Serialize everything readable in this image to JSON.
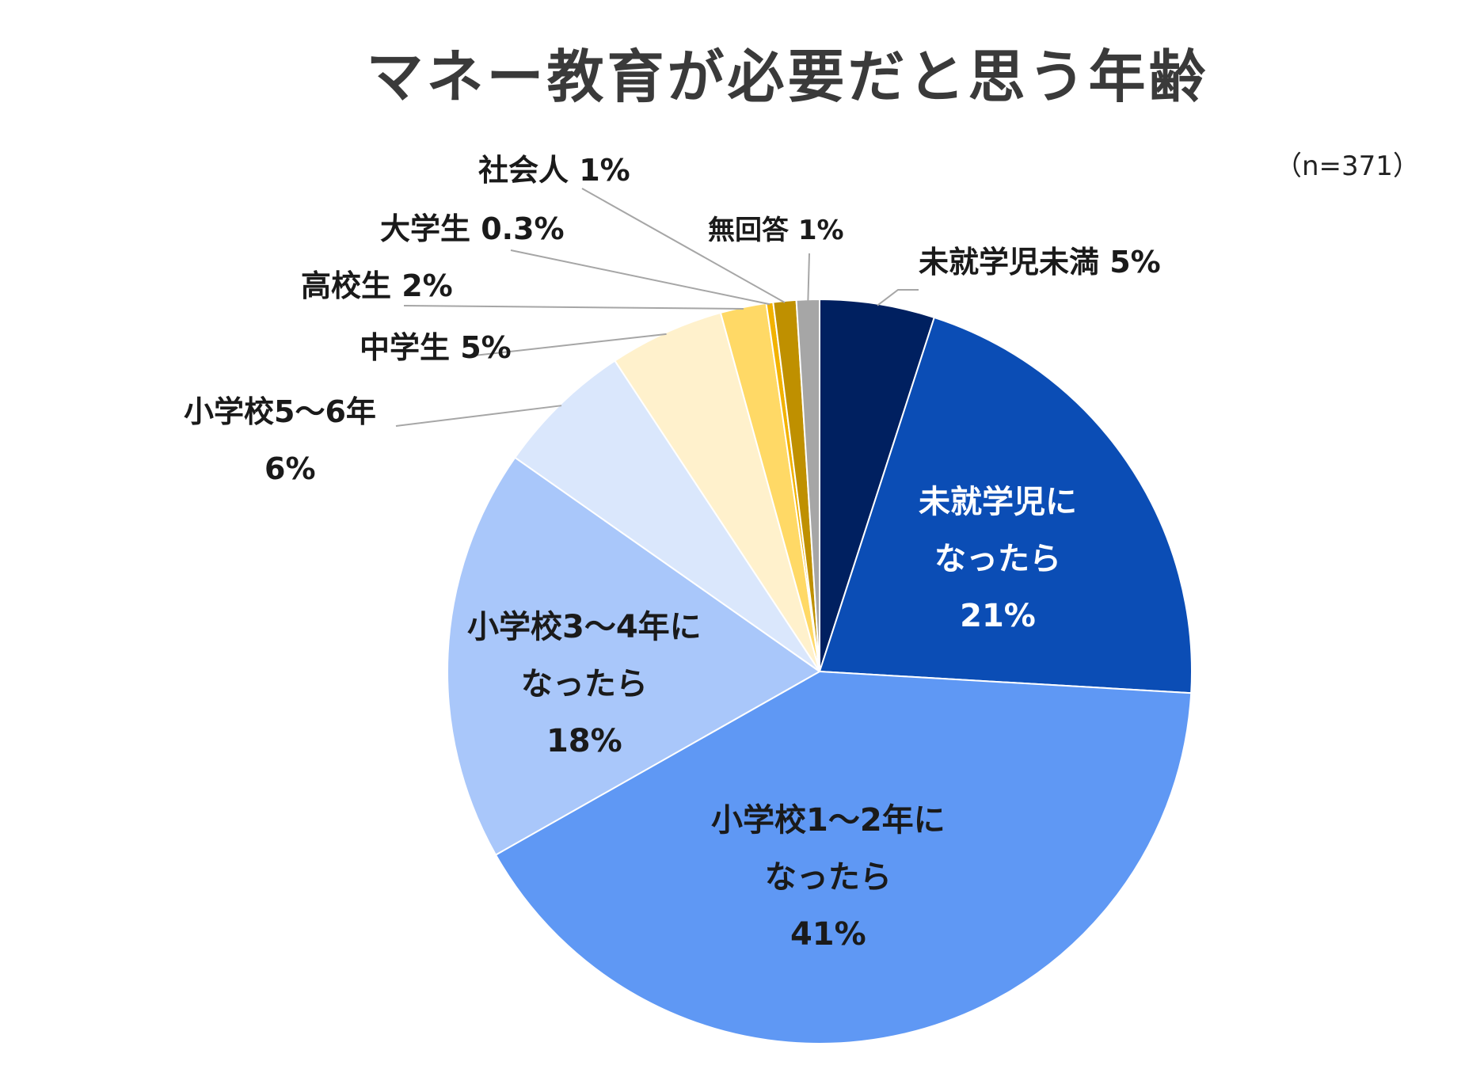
{
  "chart_data": {
    "type": "pie",
    "title": "マネー教育が必要だと思う年齢",
    "sample_note": "（n=371）",
    "start_angle": "12 o'clock, clockwise",
    "slices": [
      {
        "label": "未就学児未満",
        "value": 5,
        "value_label": "5%",
        "color": "#002060"
      },
      {
        "label": "未就学児になったら",
        "value": 21,
        "value_label": "21%",
        "color": "#0B4DB5"
      },
      {
        "label": "小学校1～2年になったら",
        "value": 41,
        "value_label": "41%",
        "color": "#5F98F4"
      },
      {
        "label": "小学校3～4年になったら",
        "value": 18,
        "value_label": "18%",
        "color": "#A9C7FA"
      },
      {
        "label": "小学校5～6年",
        "value": 6,
        "value_label": "6%",
        "color": "#DAE7FC"
      },
      {
        "label": "中学生",
        "value": 5,
        "value_label": "5%",
        "color": "#FFF1CC"
      },
      {
        "label": "高校生",
        "value": 2,
        "value_label": "2%",
        "color": "#FFD966"
      },
      {
        "label": "大学生",
        "value": 0.3,
        "value_label": "0.3%",
        "color": "#F2B200"
      },
      {
        "label": "社会人",
        "value": 1,
        "value_label": "1%",
        "color": "#BF9000"
      },
      {
        "label": "無回答",
        "value": 1,
        "value_label": "1%",
        "color": "#A6A6A6"
      }
    ]
  },
  "labels": {
    "s0": "未就学児未満 5%",
    "s1_line1": "未就学児に",
    "s1_line2": "なったら",
    "s1_line3": "21%",
    "s2_line1": "小学校1～2年に",
    "s2_line2": "なったら",
    "s2_line3": "41%",
    "s3_line1": "小学校3～4年に",
    "s3_line2": "なったら",
    "s3_line3": "18%",
    "s4_line1": "小学校5～6年",
    "s4_line2": "6%",
    "s5": "中学生 5%",
    "s6": "高校生 2%",
    "s7": "大学生 0.3%",
    "s8": "社会人 1%",
    "s9": "無回答 1%"
  }
}
